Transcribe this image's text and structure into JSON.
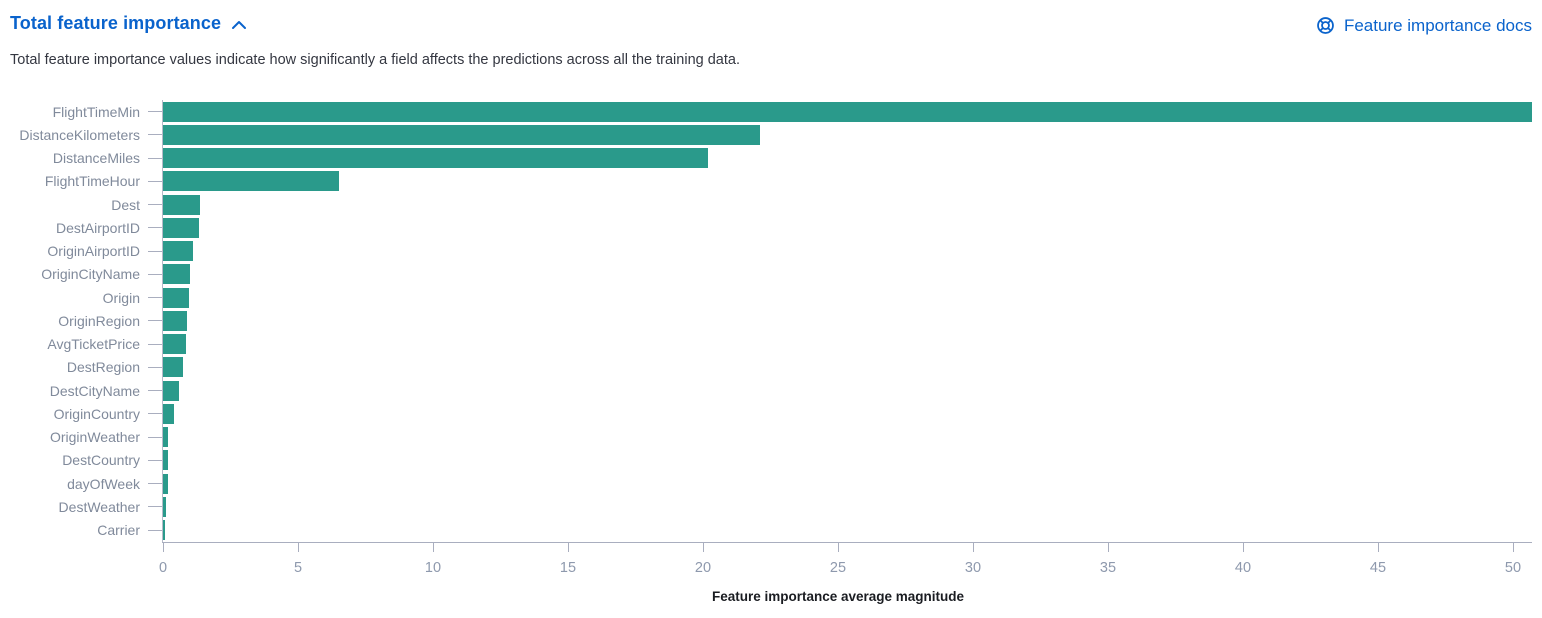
{
  "header": {
    "title": "Total feature importance",
    "docs_link_label": "Feature importance docs"
  },
  "description": "Total feature importance values indicate how significantly a field affects the predictions across all the training data.",
  "icons": {
    "collapse": "chevron-up-icon",
    "docs": "documentation-lifebuoy-icon"
  },
  "colors": {
    "bar": "#2a9a8b",
    "link_blue": "#0a63cc",
    "body_text": "#343741",
    "axis_label": "#808a9b",
    "tick_label": "#8e99ad",
    "axis_line": "#a9aebf",
    "axis_title": "#1a1c21"
  },
  "chart_data": {
    "type": "bar",
    "orientation": "horizontal",
    "title": "Total feature importance",
    "categories": [
      "FlightTimeMin",
      "DistanceKilometers",
      "DistanceMiles",
      "FlightTimeHour",
      "Dest",
      "DestAirportID",
      "OriginAirportID",
      "OriginCityName",
      "Origin",
      "OriginRegion",
      "AvgTicketPrice",
      "DestRegion",
      "DestCityName",
      "OriginCountry",
      "OriginWeather",
      "DestCountry",
      "dayOfWeek",
      "DestWeather",
      "Carrier"
    ],
    "values": [
      50.7,
      22.1,
      20.2,
      6.5,
      1.37,
      1.32,
      1.11,
      0.99,
      0.97,
      0.9,
      0.85,
      0.75,
      0.6,
      0.41,
      0.18,
      0.17,
      0.17,
      0.12,
      0.06
    ],
    "xlabel": "Feature importance average magnitude",
    "ylabel": "",
    "xlim": [
      0,
      50
    ],
    "xticks": [
      0,
      5,
      10,
      15,
      20,
      25,
      30,
      35,
      40,
      45,
      50
    ],
    "grid": false,
    "legend": "none",
    "bar_color": "#2a9a8b"
  }
}
